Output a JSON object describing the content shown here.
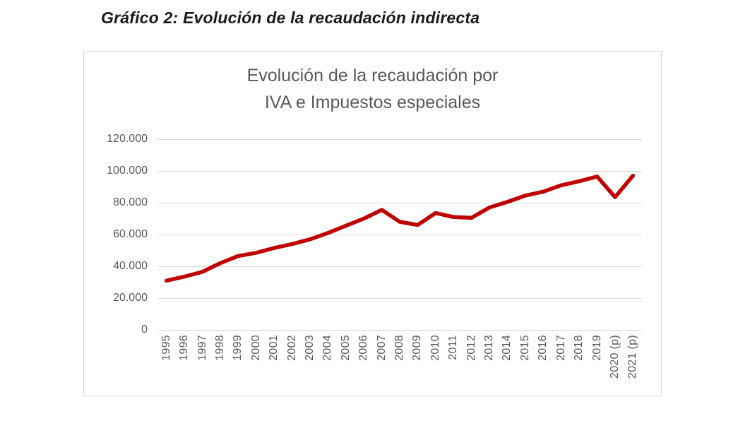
{
  "page": {
    "caption": "Gráfico 2: Evolución de la recaudación indirecta"
  },
  "chart": {
    "title_line1": "Evolución de la recaudación por",
    "title_line2": "IVA e Impuestos especiales"
  },
  "chart_data": {
    "type": "line",
    "title": "Evolución de la recaudación por IVA e Impuestos especiales",
    "categories": [
      "1995",
      "1996",
      "1997",
      "1998",
      "1999",
      "2000",
      "2001",
      "2002",
      "2003",
      "2004",
      "2005",
      "2006",
      "2007",
      "2008",
      "2009",
      "2010",
      "2011",
      "2012",
      "2013",
      "2014",
      "2015",
      "2016",
      "2017",
      "2018",
      "2019",
      "2020 (p)",
      "2021 (p)"
    ],
    "values": [
      31000,
      33500,
      36500,
      42000,
      46500,
      48500,
      51500,
      54000,
      57000,
      61000,
      65500,
      70000,
      75500,
      68000,
      66000,
      73500,
      71000,
      70500,
      77000,
      80500,
      84500,
      87000,
      91000,
      93500,
      96500,
      83500,
      97000
    ],
    "xlabel": "",
    "ylabel": "",
    "ylim": [
      0,
      120000
    ],
    "y_ticks": [
      {
        "label": "0",
        "value": 0
      },
      {
        "label": "20.000",
        "value": 20000
      },
      {
        "label": "40.000",
        "value": 40000
      },
      {
        "label": "60.000",
        "value": 60000
      },
      {
        "label": "80.000",
        "value": 80000
      },
      {
        "label": "100.000",
        "value": 100000
      },
      {
        "label": "120.000",
        "value": 120000
      }
    ],
    "grid": "horizontal",
    "legend": "none",
    "line_color": "#C00000"
  },
  "colors": {
    "grid": "#D9D9D9",
    "axis_text": "#595959",
    "title_text": "#595959",
    "chart_border": "#D6D6D6"
  }
}
